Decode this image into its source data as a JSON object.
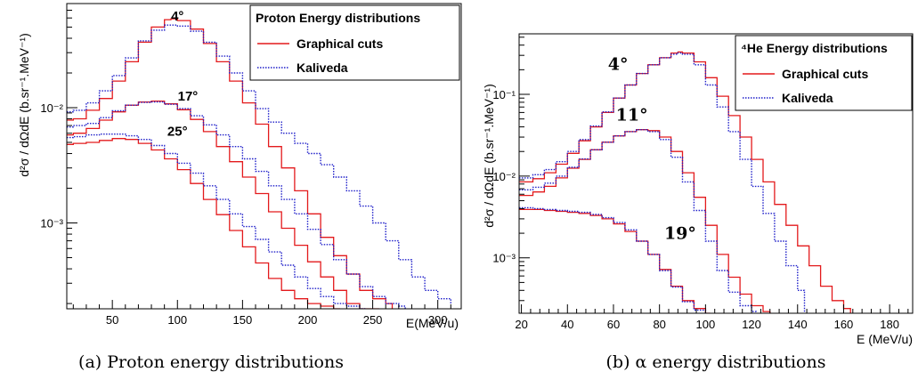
{
  "chart_data": [
    {
      "type": "line",
      "id": "a",
      "caption": "(a) Proton energy distributions",
      "xlabel": "E(MeV/u)",
      "ylabel": "d²σ / dΩdE (b.sr⁻¹.MeV⁻¹)",
      "xlim": [
        15,
        318
      ],
      "ylim": [
        0.00018,
        0.08
      ],
      "yscale": "log",
      "xticks": [
        50,
        100,
        150,
        200,
        250,
        300
      ],
      "yticks": [
        {
          "value": 0.01,
          "label": "10⁻²"
        },
        {
          "value": 0.001,
          "label": "10⁻³"
        }
      ],
      "grid": false,
      "legend": {
        "title": "Proton Energy distributions",
        "placement": "top-right",
        "entries": [
          {
            "name": "Graphical cuts",
            "color": "#e31a1c",
            "style": "solid"
          },
          {
            "name": "Kaliveda",
            "color": "#1f1fc9",
            "style": "dotted"
          }
        ]
      },
      "annotations": [
        {
          "text": "4°",
          "x": 100,
          "y": 0.057
        },
        {
          "text": "17°",
          "x": 108,
          "y": 0.0115
        },
        {
          "text": "25°",
          "x": 100,
          "y": 0.0057
        }
      ],
      "series": [
        {
          "name": "Graphical cuts",
          "angle": "4°",
          "color": "#e31a1c",
          "style": "solid",
          "x": [
            15,
            20,
            30,
            40,
            50,
            60,
            70,
            80,
            90,
            95,
            100,
            110,
            120,
            130,
            140,
            150,
            160,
            170,
            180,
            190,
            200,
            210,
            220,
            230,
            240,
            250,
            260,
            265
          ],
          "y": [
            0.0078,
            0.008,
            0.0095,
            0.012,
            0.017,
            0.025,
            0.037,
            0.05,
            0.058,
            0.059,
            0.057,
            0.048,
            0.036,
            0.025,
            0.017,
            0.011,
            0.0072,
            0.0046,
            0.003,
            0.0019,
            0.0012,
            0.00075,
            0.00052,
            0.00036,
            0.00026,
            0.00022,
            0.0002,
            0.00018
          ]
        },
        {
          "name": "Kaliveda",
          "angle": "4°",
          "color": "#1f1fc9",
          "style": "dotted",
          "x": [
            15,
            20,
            30,
            40,
            50,
            60,
            70,
            80,
            90,
            100,
            110,
            120,
            130,
            140,
            150,
            160,
            170,
            180,
            190,
            200,
            210,
            220,
            230,
            240,
            250,
            260,
            270,
            280,
            290,
            300,
            310
          ],
          "y": [
            0.0092,
            0.0095,
            0.011,
            0.014,
            0.019,
            0.027,
            0.038,
            0.047,
            0.052,
            0.051,
            0.046,
            0.037,
            0.028,
            0.02,
            0.014,
            0.0098,
            0.0075,
            0.006,
            0.0049,
            0.004,
            0.0032,
            0.0025,
            0.0019,
            0.0014,
            0.001,
            0.0007,
            0.00048,
            0.00034,
            0.00026,
            0.00022,
            0.0002
          ]
        },
        {
          "name": "Graphical cuts",
          "angle": "17°",
          "color": "#e31a1c",
          "style": "solid",
          "x": [
            15,
            20,
            30,
            40,
            50,
            60,
            70,
            80,
            90,
            100,
            110,
            120,
            130,
            140,
            150,
            160,
            170,
            180,
            190,
            200,
            210,
            220,
            230,
            240,
            250,
            255
          ],
          "y": [
            0.0058,
            0.006,
            0.0066,
            0.0078,
            0.0092,
            0.0105,
            0.0112,
            0.0114,
            0.0108,
            0.0096,
            0.0079,
            0.0062,
            0.0046,
            0.0034,
            0.0025,
            0.0018,
            0.00125,
            0.0009,
            0.00064,
            0.00046,
            0.00034,
            0.00026,
            0.0002,
            0.00018,
            0.00018,
            0.00018
          ]
        },
        {
          "name": "Kaliveda",
          "angle": "17°",
          "color": "#1f1fc9",
          "style": "dotted",
          "x": [
            15,
            20,
            30,
            40,
            50,
            60,
            70,
            80,
            90,
            100,
            110,
            120,
            130,
            140,
            150,
            160,
            170,
            180,
            190,
            200,
            210,
            220,
            230,
            240,
            250,
            260,
            270,
            275
          ],
          "y": [
            0.0068,
            0.007,
            0.0073,
            0.0082,
            0.0094,
            0.0105,
            0.0111,
            0.0112,
            0.0107,
            0.0098,
            0.0085,
            0.0071,
            0.0058,
            0.0046,
            0.0036,
            0.0028,
            0.0021,
            0.0016,
            0.0012,
            0.00088,
            0.00065,
            0.00048,
            0.00036,
            0.00028,
            0.00023,
            0.0002,
            0.00019,
            0.00018
          ]
        },
        {
          "name": "Graphical cuts",
          "angle": "25°",
          "color": "#e31a1c",
          "style": "solid",
          "x": [
            15,
            20,
            30,
            40,
            50,
            60,
            70,
            80,
            90,
            100,
            110,
            120,
            130,
            140,
            150,
            160,
            170,
            180,
            190,
            200,
            210,
            220,
            225
          ],
          "y": [
            0.0048,
            0.0049,
            0.005,
            0.0052,
            0.0054,
            0.0053,
            0.0049,
            0.0043,
            0.0036,
            0.0029,
            0.0022,
            0.0016,
            0.00118,
            0.00086,
            0.00062,
            0.00045,
            0.00033,
            0.00026,
            0.00022,
            0.0002,
            0.00019,
            0.00018,
            0.00018
          ]
        },
        {
          "name": "Kaliveda",
          "angle": "25°",
          "color": "#1f1fc9",
          "style": "dotted",
          "x": [
            15,
            20,
            30,
            40,
            50,
            60,
            70,
            80,
            90,
            100,
            110,
            120,
            130,
            140,
            150,
            160,
            170,
            180,
            190,
            200,
            210,
            220,
            230,
            240,
            245
          ],
          "y": [
            0.0055,
            0.0056,
            0.0058,
            0.0059,
            0.0059,
            0.0057,
            0.0053,
            0.0047,
            0.004,
            0.0033,
            0.0027,
            0.0021,
            0.0016,
            0.0012,
            0.00093,
            0.00072,
            0.00056,
            0.00043,
            0.00034,
            0.00027,
            0.00023,
            0.0002,
            0.00019,
            0.00018,
            0.00018
          ]
        }
      ]
    },
    {
      "type": "line",
      "id": "b",
      "caption": "(b) α energy distributions",
      "xlabel": "E (MeV/u)",
      "ylabel": "d²σ / dΩdE (b.sr⁻¹.MeV⁻¹)",
      "xlim": [
        19,
        190
      ],
      "ylim": [
        0.00021,
        0.55
      ],
      "yscale": "log",
      "xticks": [
        20,
        40,
        60,
        80,
        100,
        120,
        140,
        160,
        180
      ],
      "yticks": [
        {
          "value": 0.1,
          "label": "10⁻¹"
        },
        {
          "value": 0.01,
          "label": "10⁻²"
        },
        {
          "value": 0.001,
          "label": "10⁻³"
        }
      ],
      "grid": false,
      "legend": {
        "title": "⁴He Energy distributions",
        "placement": "top-right",
        "entries": [
          {
            "name": "Graphical cuts",
            "color": "#e31a1c",
            "style": "solid"
          },
          {
            "name": "Kaliveda",
            "color": "#1f1fc9",
            "style": "dotted"
          }
        ]
      },
      "annotations": [
        {
          "text": "4°",
          "x": 62,
          "y": 0.2
        },
        {
          "text": "11°",
          "x": 68,
          "y": 0.048
        },
        {
          "text": "19°",
          "x": 89,
          "y": 0.0017
        }
      ],
      "series": [
        {
          "name": "Graphical cuts",
          "angle": "4°",
          "color": "#e31a1c",
          "style": "solid",
          "x": [
            19,
            25,
            30,
            35,
            40,
            45,
            50,
            55,
            60,
            65,
            70,
            75,
            80,
            85,
            88,
            90,
            95,
            100,
            105,
            110,
            115,
            120,
            125,
            130,
            135,
            140,
            145,
            150,
            155,
            160,
            163
          ],
          "y": [
            0.0085,
            0.0093,
            0.011,
            0.014,
            0.019,
            0.027,
            0.04,
            0.06,
            0.09,
            0.13,
            0.18,
            0.23,
            0.28,
            0.32,
            0.33,
            0.32,
            0.25,
            0.16,
            0.095,
            0.055,
            0.03,
            0.016,
            0.0085,
            0.0045,
            0.0025,
            0.0014,
            0.0008,
            0.00045,
            0.0003,
            0.00024,
            0.00021
          ]
        },
        {
          "name": "Kaliveda",
          "angle": "4°",
          "color": "#1f1fc9",
          "style": "dotted",
          "x": [
            19,
            25,
            30,
            35,
            40,
            45,
            50,
            55,
            60,
            65,
            70,
            75,
            80,
            85,
            88,
            90,
            95,
            100,
            105,
            110,
            115,
            120,
            125,
            130,
            135,
            140,
            143
          ],
          "y": [
            0.0095,
            0.0104,
            0.012,
            0.015,
            0.02,
            0.028,
            0.041,
            0.061,
            0.09,
            0.13,
            0.18,
            0.23,
            0.28,
            0.31,
            0.32,
            0.31,
            0.23,
            0.13,
            0.07,
            0.035,
            0.016,
            0.0075,
            0.0035,
            0.0016,
            0.0008,
            0.0004,
            0.00021
          ]
        },
        {
          "name": "Graphical cuts",
          "angle": "11°",
          "color": "#e31a1c",
          "style": "solid",
          "x": [
            19,
            25,
            30,
            35,
            40,
            45,
            50,
            55,
            60,
            65,
            70,
            75,
            80,
            85,
            90,
            95,
            100,
            105,
            110,
            115,
            120,
            125,
            128
          ],
          "y": [
            0.0058,
            0.0064,
            0.0075,
            0.0095,
            0.0125,
            0.016,
            0.021,
            0.026,
            0.031,
            0.035,
            0.037,
            0.036,
            0.03,
            0.02,
            0.011,
            0.0055,
            0.0025,
            0.0011,
            0.00058,
            0.00036,
            0.00026,
            0.00022,
            0.00021
          ]
        },
        {
          "name": "Kaliveda",
          "angle": "11°",
          "color": "#1f1fc9",
          "style": "dotted",
          "x": [
            19,
            25,
            30,
            35,
            40,
            45,
            50,
            55,
            60,
            65,
            70,
            75,
            80,
            85,
            90,
            95,
            100,
            105,
            110,
            115,
            120,
            122
          ],
          "y": [
            0.0068,
            0.0073,
            0.0082,
            0.01,
            0.0128,
            0.0162,
            0.021,
            0.026,
            0.031,
            0.035,
            0.037,
            0.035,
            0.028,
            0.017,
            0.0085,
            0.0038,
            0.0016,
            0.0007,
            0.00038,
            0.00026,
            0.00022,
            0.00021
          ]
        },
        {
          "name": "Graphical cuts",
          "angle": "19°",
          "color": "#e31a1c",
          "style": "solid",
          "x": [
            19,
            25,
            30,
            35,
            40,
            45,
            50,
            55,
            60,
            65,
            70,
            75,
            80,
            85,
            90,
            95,
            100,
            102
          ],
          "y": [
            0.0039,
            0.0039,
            0.0038,
            0.0037,
            0.0036,
            0.0035,
            0.0033,
            0.003,
            0.0026,
            0.0021,
            0.0016,
            0.0011,
            0.00072,
            0.00045,
            0.0003,
            0.00024,
            0.00021,
            0.00021
          ]
        },
        {
          "name": "Kaliveda",
          "angle": "19°",
          "color": "#1f1fc9",
          "style": "dotted",
          "x": [
            19,
            25,
            30,
            35,
            40,
            45,
            50,
            55,
            60,
            65,
            70,
            75,
            80,
            85,
            90,
            95,
            100
          ],
          "y": [
            0.0041,
            0.004,
            0.0039,
            0.0038,
            0.0037,
            0.0036,
            0.0034,
            0.0031,
            0.0027,
            0.0022,
            0.0016,
            0.0011,
            0.0007,
            0.00044,
            0.00029,
            0.00023,
            0.00021
          ]
        }
      ]
    }
  ]
}
